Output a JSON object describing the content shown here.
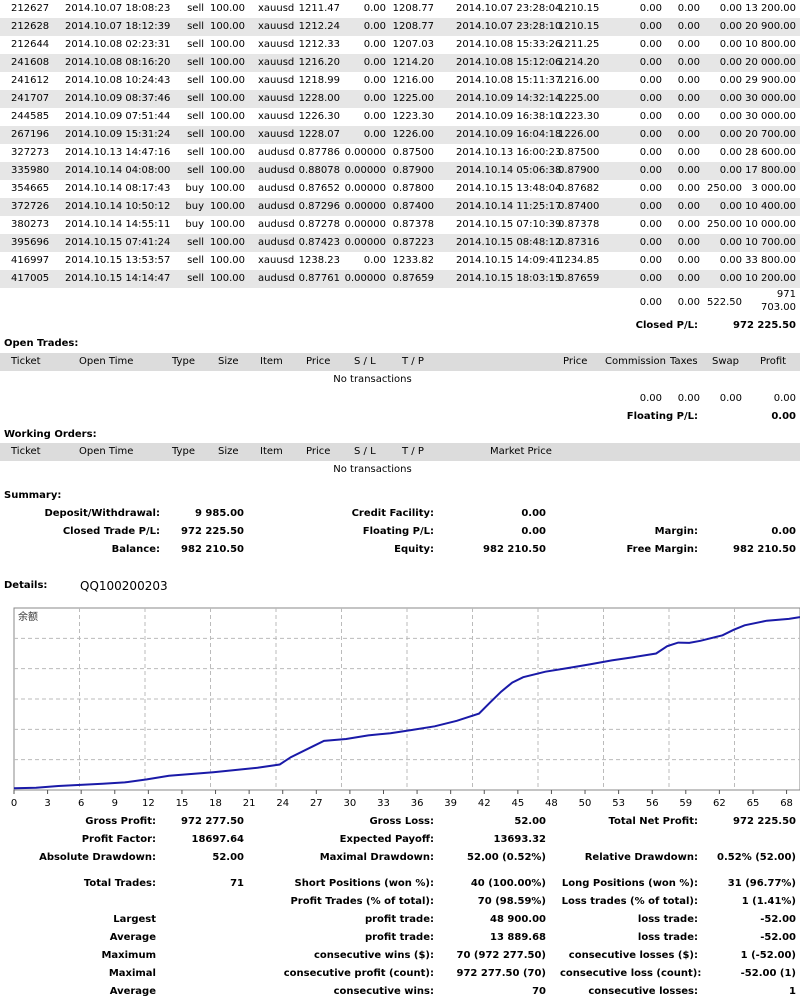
{
  "closed_trades": [
    {
      "ticket": "212627",
      "open_time": "2014.10.07 18:08:23",
      "type": "sell",
      "size": "100.00",
      "item": "xauusd",
      "price": "1211.47",
      "sl": "0.00",
      "tp": "1208.77",
      "close_time": "2014.10.07 23:28:04",
      "close_price": "1210.15",
      "commission": "0.00",
      "taxes": "0.00",
      "swap": "0.00",
      "profit": "13 200.00"
    },
    {
      "ticket": "212628",
      "open_time": "2014.10.07 18:12:39",
      "type": "sell",
      "size": "100.00",
      "item": "xauusd",
      "price": "1212.24",
      "sl": "0.00",
      "tp": "1208.77",
      "close_time": "2014.10.07 23:28:10",
      "close_price": "1210.15",
      "commission": "0.00",
      "taxes": "0.00",
      "swap": "0.00",
      "profit": "20 900.00"
    },
    {
      "ticket": "212644",
      "open_time": "2014.10.08 02:23:31",
      "type": "sell",
      "size": "100.00",
      "item": "xauusd",
      "price": "1212.33",
      "sl": "0.00",
      "tp": "1207.03",
      "close_time": "2014.10.08 15:33:26",
      "close_price": "1211.25",
      "commission": "0.00",
      "taxes": "0.00",
      "swap": "0.00",
      "profit": "10 800.00"
    },
    {
      "ticket": "241608",
      "open_time": "2014.10.08 08:16:20",
      "type": "sell",
      "size": "100.00",
      "item": "xauusd",
      "price": "1216.20",
      "sl": "0.00",
      "tp": "1214.20",
      "close_time": "2014.10.08 15:12:06",
      "close_price": "1214.20",
      "commission": "0.00",
      "taxes": "0.00",
      "swap": "0.00",
      "profit": "20 000.00"
    },
    {
      "ticket": "241612",
      "open_time": "2014.10.08 10:24:43",
      "type": "sell",
      "size": "100.00",
      "item": "xauusd",
      "price": "1218.99",
      "sl": "0.00",
      "tp": "1216.00",
      "close_time": "2014.10.08 15:11:37",
      "close_price": "1216.00",
      "commission": "0.00",
      "taxes": "0.00",
      "swap": "0.00",
      "profit": "29 900.00"
    },
    {
      "ticket": "241707",
      "open_time": "2014.10.09 08:37:46",
      "type": "sell",
      "size": "100.00",
      "item": "xauusd",
      "price": "1228.00",
      "sl": "0.00",
      "tp": "1225.00",
      "close_time": "2014.10.09 14:32:14",
      "close_price": "1225.00",
      "commission": "0.00",
      "taxes": "0.00",
      "swap": "0.00",
      "profit": "30 000.00"
    },
    {
      "ticket": "244585",
      "open_time": "2014.10.09 07:51:44",
      "type": "sell",
      "size": "100.00",
      "item": "xauusd",
      "price": "1226.30",
      "sl": "0.00",
      "tp": "1223.30",
      "close_time": "2014.10.09 16:38:10",
      "close_price": "1223.30",
      "commission": "0.00",
      "taxes": "0.00",
      "swap": "0.00",
      "profit": "30 000.00"
    },
    {
      "ticket": "267196",
      "open_time": "2014.10.09 15:31:24",
      "type": "sell",
      "size": "100.00",
      "item": "xauusd",
      "price": "1228.07",
      "sl": "0.00",
      "tp": "1226.00",
      "close_time": "2014.10.09 16:04:18",
      "close_price": "1226.00",
      "commission": "0.00",
      "taxes": "0.00",
      "swap": "0.00",
      "profit": "20 700.00"
    },
    {
      "ticket": "327273",
      "open_time": "2014.10.13 14:47:16",
      "type": "sell",
      "size": "100.00",
      "item": "audusd",
      "price": "0.87786",
      "sl": "0.00000",
      "tp": "0.87500",
      "close_time": "2014.10.13 16:00:23",
      "close_price": "0.87500",
      "commission": "0.00",
      "taxes": "0.00",
      "swap": "0.00",
      "profit": "28 600.00"
    },
    {
      "ticket": "335980",
      "open_time": "2014.10.14 04:08:00",
      "type": "sell",
      "size": "100.00",
      "item": "audusd",
      "price": "0.88078",
      "sl": "0.00000",
      "tp": "0.87900",
      "close_time": "2014.10.14 05:06:38",
      "close_price": "0.87900",
      "commission": "0.00",
      "taxes": "0.00",
      "swap": "0.00",
      "profit": "17 800.00"
    },
    {
      "ticket": "354665",
      "open_time": "2014.10.14 08:17:43",
      "type": "buy",
      "size": "100.00",
      "item": "audusd",
      "price": "0.87652",
      "sl": "0.00000",
      "tp": "0.87800",
      "close_time": "2014.10.15 13:48:04",
      "close_price": "0.87682",
      "commission": "0.00",
      "taxes": "0.00",
      "swap": "250.00",
      "profit": "3 000.00"
    },
    {
      "ticket": "372726",
      "open_time": "2014.10.14 10:50:12",
      "type": "buy",
      "size": "100.00",
      "item": "audusd",
      "price": "0.87296",
      "sl": "0.00000",
      "tp": "0.87400",
      "close_time": "2014.10.14 11:25:17",
      "close_price": "0.87400",
      "commission": "0.00",
      "taxes": "0.00",
      "swap": "0.00",
      "profit": "10 400.00"
    },
    {
      "ticket": "380273",
      "open_time": "2014.10.14 14:55:11",
      "type": "buy",
      "size": "100.00",
      "item": "audusd",
      "price": "0.87278",
      "sl": "0.00000",
      "tp": "0.87378",
      "close_time": "2014.10.15 07:10:39",
      "close_price": "0.87378",
      "commission": "0.00",
      "taxes": "0.00",
      "swap": "250.00",
      "profit": "10 000.00"
    },
    {
      "ticket": "395696",
      "open_time": "2014.10.15 07:41:24",
      "type": "sell",
      "size": "100.00",
      "item": "audusd",
      "price": "0.87423",
      "sl": "0.00000",
      "tp": "0.87223",
      "close_time": "2014.10.15 08:48:12",
      "close_price": "0.87316",
      "commission": "0.00",
      "taxes": "0.00",
      "swap": "0.00",
      "profit": "10 700.00"
    },
    {
      "ticket": "416997",
      "open_time": "2014.10.15 13:53:57",
      "type": "sell",
      "size": "100.00",
      "item": "xauusd",
      "price": "1238.23",
      "sl": "0.00",
      "tp": "1233.82",
      "close_time": "2014.10.15 14:09:41",
      "close_price": "1234.85",
      "commission": "0.00",
      "taxes": "0.00",
      "swap": "0.00",
      "profit": "33 800.00"
    },
    {
      "ticket": "417005",
      "open_time": "2014.10.15 14:14:47",
      "type": "sell",
      "size": "100.00",
      "item": "audusd",
      "price": "0.87761",
      "sl": "0.00000",
      "tp": "0.87659",
      "close_time": "2014.10.15 18:03:15",
      "close_price": "0.87659",
      "commission": "0.00",
      "taxes": "0.00",
      "swap": "0.00",
      "profit": "10 200.00"
    }
  ],
  "closed_totals": {
    "commission": "0.00",
    "taxes": "0.00",
    "swap": "522.50",
    "profit_line1": "971",
    "profit_line2": "703.00",
    "closed_pl_label": "Closed P/L:",
    "closed_pl": "972 225.50"
  },
  "open_trades": {
    "title": "Open Trades:",
    "headers": {
      "ticket": "Ticket",
      "open_time": "Open Time",
      "type": "Type",
      "size": "Size",
      "item": "Item",
      "price": "Price",
      "sl": "S / L",
      "tp": "T / P",
      "cur_price": "Price",
      "commission": "Commission",
      "taxes": "Taxes",
      "swap": "Swap",
      "profit": "Profit"
    },
    "empty": "No transactions",
    "totals": {
      "commission": "0.00",
      "taxes": "0.00",
      "swap": "0.00",
      "profit": "0.00"
    },
    "floating_label": "Floating P/L:",
    "floating": "0.00"
  },
  "working_orders": {
    "title": "Working Orders:",
    "headers": {
      "ticket": "Ticket",
      "open_time": "Open Time",
      "type": "Type",
      "size": "Size",
      "item": "Item",
      "price": "Price",
      "sl": "S / L",
      "tp": "T / P",
      "market_price": "Market Price"
    },
    "empty": "No transactions"
  },
  "summary": {
    "title": "Summary:",
    "deposit_label": "Deposit/Withdrawal:",
    "deposit": "9 985.00",
    "credit_label": "Credit Facility:",
    "credit": "0.00",
    "closed_pl_label": "Closed Trade P/L:",
    "closed_pl": "972 225.50",
    "floating_label": "Floating P/L:",
    "floating": "0.00",
    "margin_label": "Margin:",
    "margin": "0.00",
    "balance_label": "Balance:",
    "balance": "982 210.50",
    "equity_label": "Equity:",
    "equity": "982 210.50",
    "free_margin_label": "Free Margin:",
    "free_margin": "982 210.50"
  },
  "details": {
    "label": "Details:",
    "account": "QQ100200203"
  },
  "chart_data": {
    "type": "line",
    "title": "余额",
    "x_ticks": [
      "0",
      "3",
      "6",
      "9",
      "12",
      "15",
      "18",
      "21",
      "24",
      "27",
      "30",
      "33",
      "36",
      "39",
      "42",
      "45",
      "48",
      "50",
      "53",
      "56",
      "59",
      "62",
      "65",
      "68"
    ],
    "xlim": [
      0,
      71
    ],
    "ylim": [
      0,
      1000000
    ],
    "grid": true,
    "series": [
      {
        "values": [
          [
            0,
            9985
          ],
          [
            2,
            12000
          ],
          [
            4,
            22000
          ],
          [
            6,
            28000
          ],
          [
            8,
            34000
          ],
          [
            10,
            42000
          ],
          [
            12,
            58000
          ],
          [
            14,
            78000
          ],
          [
            16,
            88000
          ],
          [
            18,
            98000
          ],
          [
            20,
            110000
          ],
          [
            22,
            122000
          ],
          [
            24,
            140000
          ],
          [
            25,
            180000
          ],
          [
            27,
            240000
          ],
          [
            28,
            270000
          ],
          [
            30,
            280000
          ],
          [
            32,
            300000
          ],
          [
            34,
            312000
          ],
          [
            36,
            330000
          ],
          [
            38,
            350000
          ],
          [
            40,
            380000
          ],
          [
            41,
            400000
          ],
          [
            42,
            420000
          ],
          [
            43,
            480000
          ],
          [
            44,
            540000
          ],
          [
            45,
            590000
          ],
          [
            46,
            620000
          ],
          [
            48,
            650000
          ],
          [
            50,
            670000
          ],
          [
            52,
            690000
          ],
          [
            54,
            712000
          ],
          [
            56,
            730000
          ],
          [
            58,
            750000
          ],
          [
            59,
            790000
          ],
          [
            60,
            810000
          ],
          [
            61,
            808000
          ],
          [
            62,
            820000
          ],
          [
            64,
            850000
          ],
          [
            65,
            880000
          ],
          [
            66,
            905000
          ],
          [
            68,
            930000
          ],
          [
            70,
            940000
          ],
          [
            71,
            950000
          ]
        ],
        "color": "#1a1aa8"
      }
    ]
  },
  "stats": {
    "gross_profit_label": "Gross Profit:",
    "gross_profit": "972 277.50",
    "gross_loss_label": "Gross Loss:",
    "gross_loss": "52.00",
    "total_net_label": "Total Net Profit:",
    "total_net": "972 225.50",
    "profit_factor_label": "Profit Factor:",
    "profit_factor": "18697.64",
    "expected_payoff_label": "Expected Payoff:",
    "expected_payoff": "13693.32",
    "abs_dd_label": "Absolute Drawdown:",
    "abs_dd": "52.00",
    "max_dd_label": "Maximal Drawdown:",
    "max_dd": "52.00 (0.52%)",
    "rel_dd_label": "Relative Drawdown:",
    "rel_dd": "0.52% (52.00)",
    "total_trades_label": "Total Trades:",
    "total_trades": "71",
    "short_label": "Short Positions (won %):",
    "short": "40 (100.00%)",
    "long_label": "Long Positions (won %):",
    "long": "31 (96.77%)",
    "profit_trades_label": "Profit Trades (% of total):",
    "profit_trades": "70 (98.59%)",
    "loss_trades_label": "Loss trades (% of total):",
    "loss_trades": "1 (1.41%)",
    "largest_label": "Largest",
    "largest_profit_label": "profit trade:",
    "largest_profit": "48 900.00",
    "largest_loss_label": "loss trade:",
    "largest_loss": "-52.00",
    "average_label": "Average",
    "average_profit_label": "profit trade:",
    "average_profit": "13 889.68",
    "average_loss_label": "loss trade:",
    "average_loss": "-52.00",
    "maximum_label": "Maximum",
    "max_wins_label": "consecutive wins ($):",
    "max_wins": "70 (972 277.50)",
    "max_losses_label": "consecutive losses ($):",
    "max_losses": "1 (-52.00)",
    "maximal_label": "Maximal",
    "maximal_profit_label": "consecutive profit (count):",
    "maximal_profit": "972 277.50 (70)",
    "maximal_loss_label": "consecutive loss (count):",
    "maximal_loss": "-52.00 (1)",
    "avg2_label": "Average",
    "avg_cons_wins_label": "consecutive wins:",
    "avg_cons_wins": "70",
    "avg_cons_losses_label": "consecutive losses:",
    "avg_cons_losses": "1"
  }
}
